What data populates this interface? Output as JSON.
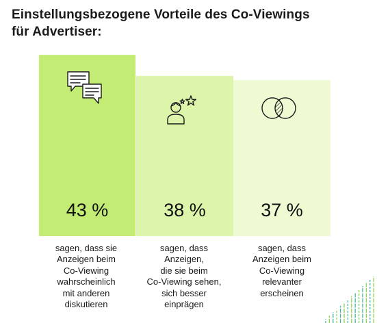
{
  "title_lines": [
    "Einstellungsbezogene Vorteile des Co-Viewings",
    "für Advertiser:"
  ],
  "colors": {
    "bar_1": "#c3ec75",
    "bar_2": "#ddf5aa",
    "bar_3": "#eefad2",
    "text": "#1a1a1a",
    "deco_green": "#8ed04f",
    "deco_teal": "#42b8a8"
  },
  "chart_data": {
    "type": "bar",
    "title": "Einstellungsbezogene Vorteile des Co-Viewings für Advertiser:",
    "unit": "%",
    "categories": [
      "sagen, dass sie Anzeigen beim Co-Viewing wahrscheinlich mit anderen diskutieren",
      "sagen, dass Anzeigen, die sie beim Co-Viewing sehen, sich besser einprägen",
      "sagen, dass Anzeigen beim Co-Viewing relevanter erscheinen"
    ],
    "values": [
      43,
      38,
      37
    ],
    "value_labels": [
      "43 %",
      "38 %",
      "37 %"
    ],
    "icons": [
      "speech-bubbles-icon",
      "person-stars-icon",
      "overlapping-circles-icon"
    ],
    "description_lines": [
      [
        "sagen, dass sie",
        "Anzeigen beim",
        "Co-Viewing",
        "wahrscheinlich",
        "mit anderen",
        "diskutieren"
      ],
      [
        "sagen, dass",
        "Anzeigen,",
        "die sie beim",
        "Co-Viewing sehen,",
        "sich besser",
        "einprägen"
      ],
      [
        "sagen, dass",
        "Anzeigen beim",
        "Co-Viewing",
        "relevanter",
        "erscheinen"
      ]
    ],
    "grid": false,
    "legend": "none"
  }
}
